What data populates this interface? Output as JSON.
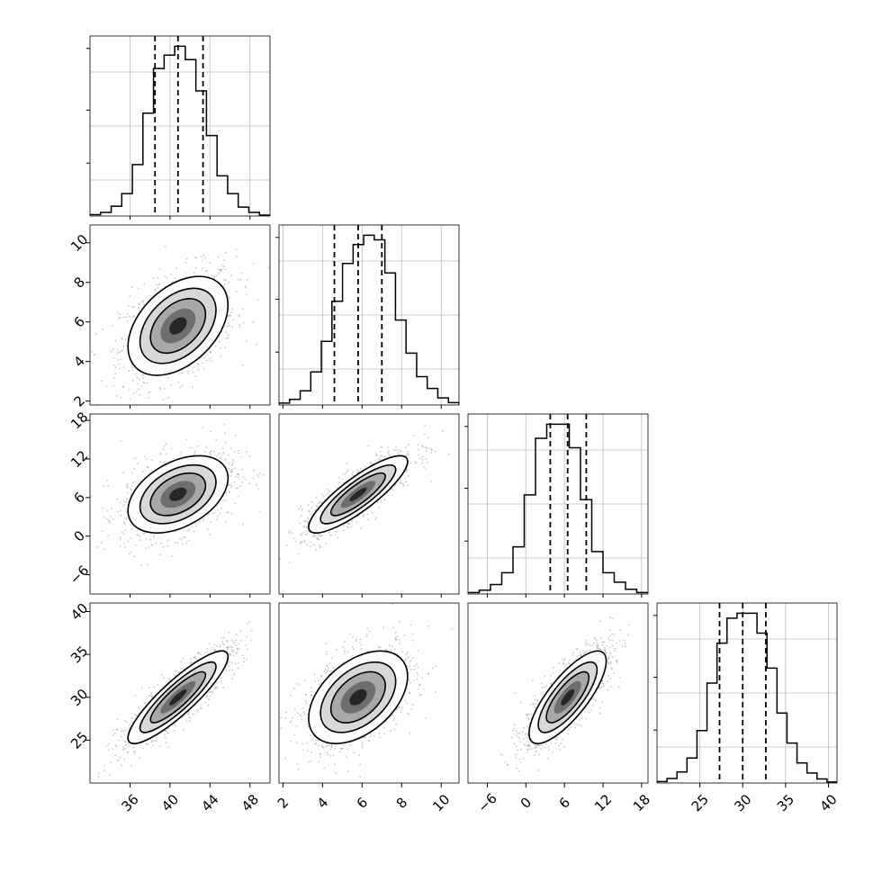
{
  "chart_data": {
    "type": "corner",
    "variables": [
      {
        "range": [
          32,
          50
        ],
        "ticks": [
          36,
          40,
          44,
          48
        ],
        "tick_labels": [
          "36",
          "40",
          "44",
          "48"
        ],
        "quantiles": [
          38.5,
          40.8,
          43.3
        ],
        "hist_values": [
          0.3,
          0.8,
          2.2,
          5,
          11.5,
          23,
          33,
          36,
          38,
          35,
          28,
          18,
          9,
          5,
          2,
          0.8,
          0.2
        ]
      },
      {
        "range": [
          1.8,
          10.9
        ],
        "ticks": [
          2,
          4,
          6,
          8,
          10
        ],
        "tick_labels": [
          "2",
          "4",
          "6",
          "8",
          "10"
        ],
        "quantiles": [
          4.6,
          5.8,
          7.0
        ],
        "hist_values": [
          0.4,
          1.2,
          3,
          7,
          13.5,
          22,
          30,
          34,
          36,
          35,
          28,
          18,
          11,
          6,
          3.5,
          1.5,
          0.5
        ]
      },
      {
        "range": [
          -9,
          19
        ],
        "ticks": [
          -6,
          0,
          6,
          12,
          18
        ],
        "tick_labels": [
          "−6",
          "0",
          "6",
          "12",
          "18"
        ],
        "quantiles": [
          3.8,
          6.5,
          9.4
        ],
        "hist_values": [
          0.3,
          0.8,
          2,
          4.5,
          10,
          21,
          33,
          36,
          36,
          31,
          20,
          9,
          4.5,
          2.5,
          1,
          0.3
        ]
      },
      {
        "range": [
          20,
          41
        ],
        "ticks": [
          25,
          30,
          35,
          40
        ],
        "tick_labels": [
          "25",
          "30",
          "35",
          "40"
        ],
        "quantiles": [
          27.3,
          30.0,
          32.7
        ],
        "hist_values": [
          0.3,
          0.9,
          2.2,
          5,
          10.5,
          20,
          28,
          33,
          34,
          34,
          30,
          23,
          14,
          8,
          4,
          2,
          0.8,
          0.2
        ]
      }
    ],
    "pairs": [
      {
        "row": 1,
        "col": 0,
        "mean": [
          40.8,
          5.8
        ],
        "sd": [
          2.5,
          1.25
        ],
        "corr": 0.42
      },
      {
        "row": 2,
        "col": 0,
        "mean": [
          40.8,
          6.5
        ],
        "sd": [
          2.5,
          3.0
        ],
        "corr": 0.42
      },
      {
        "row": 2,
        "col": 1,
        "mean": [
          5.8,
          6.5
        ],
        "sd": [
          1.25,
          3.0
        ],
        "corr": 0.85
      },
      {
        "row": 3,
        "col": 0,
        "mean": [
          40.8,
          30.0
        ],
        "sd": [
          2.5,
          2.7
        ],
        "corr": 0.88
      },
      {
        "row": 3,
        "col": 1,
        "mean": [
          5.8,
          30.0
        ],
        "sd": [
          1.25,
          2.7
        ],
        "corr": 0.45
      },
      {
        "row": 3,
        "col": 2,
        "mean": [
          6.5,
          30.0
        ],
        "sd": [
          3.0,
          2.7
        ],
        "corr": 0.78
      }
    ],
    "grid": true,
    "colors": {
      "contour": "#000000",
      "points": "#9a9a9a",
      "hist": "#000000",
      "grid": "#bdbdbd"
    }
  }
}
